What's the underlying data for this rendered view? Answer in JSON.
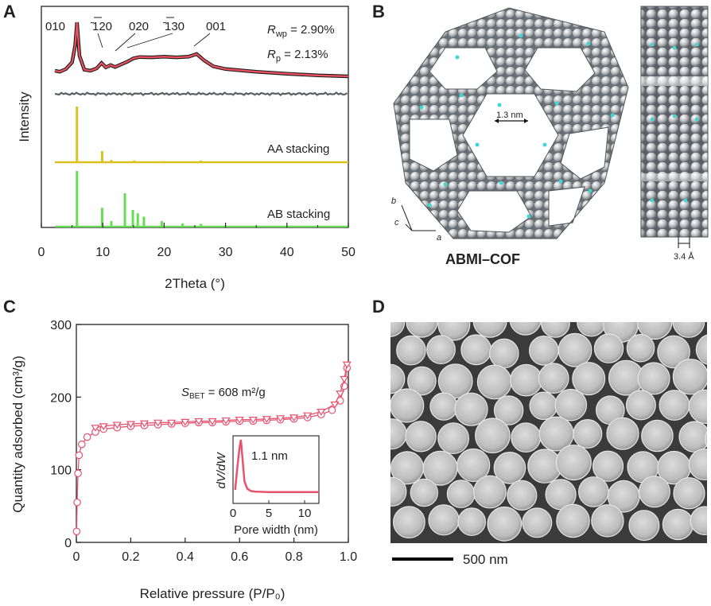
{
  "panels": {
    "A": {
      "letter": "A",
      "ylabel": "Intensity",
      "xlabel": "2Theta (°)",
      "xticks": [
        "0",
        "10",
        "20",
        "30",
        "40",
        "50"
      ],
      "peak_labels": [
        "010",
        "̄120",
        "020",
        "̄130",
        "001"
      ],
      "rwp": "R",
      "rwp_sub": "wp",
      "rwp_val": " = 2.90%",
      "rp": "R",
      "rp_sub": "p",
      "rp_val": " = 2.13%",
      "aa_label": "AA stacking",
      "ab_label": "AB stacking",
      "colors": {
        "exp": "#1a1a1a",
        "fit": "#e8525f",
        "diff": "#5a5f63",
        "aa": "#d9c21e",
        "ab": "#66dd55"
      }
    },
    "B": {
      "letter": "B",
      "pore_label": "1.3 nm",
      "layer_label": "3.4 Å",
      "axis_b": "b",
      "axis_c": "c",
      "axis_a": "a",
      "name": "ABMI–COF"
    },
    "C": {
      "letter": "C",
      "ylabel": "Quantity adsorbed (cm³/g)",
      "xlabel": "Relative pressure (P/P₀)",
      "yticks": [
        "0",
        "100",
        "200",
        "300"
      ],
      "xticks": [
        "0",
        "0.2",
        "0.4",
        "0.6",
        "0.8",
        "1.0"
      ],
      "sbet_s": "S",
      "sbet_sub": "BET",
      "sbet_val": " = 608 m²/g",
      "inset": {
        "ylabel": "dV/dW",
        "xlabel": "Pore width (nm)",
        "xticks": [
          "0",
          "5",
          "10"
        ],
        "peak_label": "1.1 nm"
      },
      "colors": {
        "iso": "#e8526f"
      }
    },
    "D": {
      "letter": "D",
      "scale_label": "500 nm"
    }
  },
  "chart_data": [
    {
      "type": "line",
      "title": "",
      "xlabel": "2Theta (°)",
      "ylabel": "Intensity",
      "xlim": [
        0,
        50
      ],
      "series": [
        {
          "x": [
            2.2,
            3,
            4,
            5,
            5.5,
            5.8,
            6.2,
            7,
            8,
            9,
            9.8,
            10.5,
            11.3,
            12,
            13,
            14,
            15,
            16,
            18,
            20,
            22,
            24,
            25.3,
            26.5,
            28,
            30,
            35,
            40,
            45,
            50
          ],
          "values": [
            0.55,
            0.52,
            0.6,
            0.8,
            1.3,
            2.0,
            1.0,
            0.58,
            0.55,
            0.62,
            0.78,
            0.65,
            0.72,
            0.66,
            0.74,
            0.82,
            0.92,
            0.96,
            0.95,
            0.97,
            0.95,
            0.97,
            1.05,
            0.86,
            0.68,
            0.6,
            0.52,
            0.46,
            0.41,
            0.38
          ]
        }
      ],
      "aa_peaks": [
        [
          5.8,
          1.0
        ],
        [
          9.9,
          0.2
        ],
        [
          11.4,
          0.04
        ],
        [
          15.1,
          0.03
        ],
        [
          20,
          0.02
        ],
        [
          26,
          0.03
        ]
      ],
      "ab_peaks": [
        [
          5.8,
          1.0
        ],
        [
          9.9,
          0.34
        ],
        [
          11.4,
          0.1
        ],
        [
          13.6,
          0.6
        ],
        [
          14.9,
          0.3
        ],
        [
          15.7,
          0.24
        ],
        [
          16.7,
          0.18
        ],
        [
          19.6,
          0.1
        ],
        [
          23,
          0.06
        ],
        [
          26,
          0.05
        ]
      ]
    },
    {
      "type": "scatter",
      "title": "",
      "xlabel": "Relative pressure (P/P₀)",
      "ylabel": "Quantity adsorbed (cm³/g)",
      "xlim": [
        0,
        1.0
      ],
      "ylim": [
        0,
        300
      ],
      "series": [
        {
          "name": "adsorption",
          "x": [
            0.001,
            0.003,
            0.006,
            0.01,
            0.02,
            0.04,
            0.07,
            0.1,
            0.15,
            0.2,
            0.25,
            0.3,
            0.35,
            0.4,
            0.45,
            0.5,
            0.55,
            0.6,
            0.65,
            0.7,
            0.75,
            0.8,
            0.85,
            0.9,
            0.94,
            0.97,
            0.985,
            0.995
          ],
          "values": [
            15,
            55,
            95,
            120,
            135,
            145,
            152,
            156,
            158,
            160,
            161,
            162,
            163,
            164,
            165,
            165,
            166,
            167,
            167,
            168,
            169,
            170,
            172,
            176,
            182,
            195,
            215,
            240
          ]
        },
        {
          "name": "desorption",
          "x": [
            0.995,
            0.985,
            0.97,
            0.95,
            0.9,
            0.85,
            0.8,
            0.75,
            0.7,
            0.65,
            0.6,
            0.55,
            0.5,
            0.45,
            0.4,
            0.35,
            0.3,
            0.25,
            0.2,
            0.15,
            0.1,
            0.07
          ],
          "values": [
            245,
            225,
            205,
            190,
            180,
            175,
            172,
            171,
            170,
            169,
            169,
            168,
            167,
            167,
            166,
            165,
            165,
            164,
            163,
            162,
            160,
            158
          ]
        }
      ]
    },
    {
      "type": "line",
      "title": "",
      "xlabel": "Pore width (nm)",
      "ylabel": "dV/dW",
      "xlim": [
        0,
        12
      ],
      "series": [
        {
          "x": [
            0.3,
            0.6,
            0.9,
            1.1,
            1.3,
            1.6,
            2.0,
            2.5,
            3,
            5,
            7,
            10,
            12
          ],
          "values": [
            0.1,
            0.5,
            0.85,
            1.0,
            0.7,
            0.25,
            0.12,
            0.08,
            0.07,
            0.06,
            0.06,
            0.06,
            0.06
          ]
        }
      ]
    }
  ]
}
